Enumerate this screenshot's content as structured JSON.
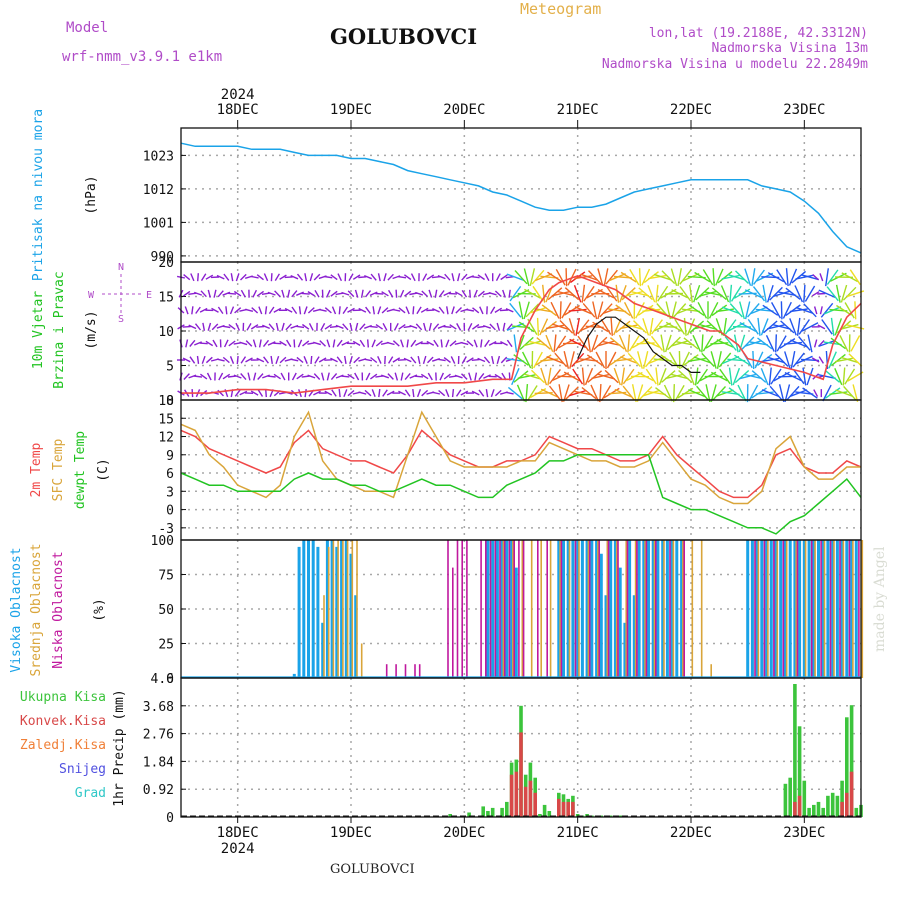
{
  "header": {
    "model_label": "Model",
    "model_name": "wrf-nmm_v3.9.1 e1km",
    "location": "GOLUBOVCI",
    "product": "Meteogram",
    "lonlat": "lon,lat (19.2188E, 42.3312N)",
    "elevation": "Nadmorska Visina 13m",
    "model_elevation": "Nadmorska Visina u modelu 22.2849m"
  },
  "footer": {
    "location": "GOLUBOVCI",
    "credit": "made by Angel"
  },
  "time_axis": {
    "year": "2024",
    "days": [
      "18DEC",
      "19DEC",
      "20DEC",
      "21DEC",
      "22DEC",
      "23DEC"
    ],
    "start_hour": 0,
    "end_hour": 144
  },
  "colors": {
    "pressure": "#1aa3e8",
    "t2m": "#f04848",
    "sfc": "#d9a53a",
    "dewpt": "#22c422",
    "cloud_high": "#1aa3e8",
    "cloud_mid": "#d9a53a",
    "cloud_low": "#c0189e",
    "precip_total": "#3cc43c",
    "precip_conv": "#d84848",
    "precip_freeze": "#f08038",
    "precip_snow": "#5050e0",
    "precip_hail": "#30c8c8",
    "wind_calm": "#8a1fd0",
    "grid": "#a8a8a8"
  },
  "chart_data": [
    {
      "type": "line",
      "panel": "pressure",
      "ylabel_lines": [
        "Pritisak na nivou mora",
        "(hPa)"
      ],
      "ylim": [
        988,
        1032
      ],
      "yticks": [
        990,
        1001,
        1012,
        1023
      ],
      "series": [
        {
          "x": [
            0,
            3,
            6,
            9,
            12,
            15,
            18,
            21,
            24,
            27,
            30,
            33,
            36,
            39,
            42,
            45,
            48,
            51,
            54,
            57,
            60,
            63,
            66,
            69,
            72,
            75,
            78,
            81,
            84,
            87,
            90,
            93,
            96,
            99,
            102,
            105,
            108,
            111,
            114,
            117,
            120,
            123,
            126,
            129,
            132,
            135,
            138,
            141,
            144
          ],
          "values": [
            1027,
            1026,
            1026,
            1026,
            1026,
            1025,
            1025,
            1025,
            1024,
            1023,
            1023,
            1023,
            1022,
            1022,
            1021,
            1020,
            1018,
            1017,
            1016,
            1015,
            1014,
            1013,
            1011,
            1010,
            1008,
            1006,
            1005,
            1005,
            1006,
            1006,
            1007,
            1009,
            1011,
            1012,
            1013,
            1014,
            1015,
            1015,
            1015,
            1015,
            1015,
            1013,
            1012,
            1011,
            1008,
            1004,
            998,
            993,
            991
          ]
        }
      ]
    },
    {
      "type": "scatter",
      "panel": "wind",
      "ylabel_lines": [
        "10m Vjetar",
        "Brzina i Pravac",
        "(m/s)"
      ],
      "compass": [
        "W",
        "E",
        "S",
        "N"
      ],
      "ylim": [
        0,
        20
      ],
      "yticks": [
        0,
        5,
        10,
        15,
        20
      ],
      "series": [
        {
          "name": "speed",
          "x": [
            0,
            6,
            12,
            18,
            24,
            30,
            36,
            42,
            48,
            54,
            60,
            66,
            70,
            72,
            75,
            78,
            80,
            84,
            88,
            92,
            96,
            100,
            104,
            108,
            112,
            114,
            118,
            120,
            126,
            132,
            136,
            138,
            141,
            144
          ],
          "values": [
            1,
            1,
            1.5,
            1.5,
            1,
            1.5,
            2,
            2,
            2,
            2.5,
            2.5,
            3,
            3,
            9,
            13,
            16,
            17,
            18,
            17,
            16,
            14,
            13,
            12,
            11,
            10,
            10,
            8,
            6,
            5,
            4,
            3,
            8,
            12,
            14
          ]
        },
        {
          "name": "gust",
          "x": [
            84,
            86,
            88,
            90,
            92,
            94,
            96,
            98,
            100,
            102,
            104,
            106,
            108,
            110
          ],
          "values": [
            6,
            9,
            11,
            12,
            12,
            11,
            10,
            9,
            7,
            6,
            5,
            5,
            4,
            4
          ]
        }
      ]
    },
    {
      "type": "line",
      "panel": "temperature",
      "ylabel_lines": [
        "2m Temp",
        "SFC Temp",
        "dewpt Temp",
        "(C)"
      ],
      "ylim": [
        -5,
        18
      ],
      "yticks": [
        -3,
        0,
        3,
        6,
        9,
        12,
        15,
        18
      ],
      "x": [
        0,
        3,
        6,
        9,
        12,
        15,
        18,
        21,
        24,
        27,
        30,
        33,
        36,
        39,
        42,
        45,
        48,
        51,
        54,
        57,
        60,
        63,
        66,
        69,
        72,
        75,
        78,
        81,
        84,
        87,
        90,
        93,
        96,
        99,
        102,
        105,
        108,
        111,
        114,
        117,
        120,
        123,
        126,
        129,
        132,
        135,
        138,
        141,
        144
      ],
      "series": [
        {
          "name": "2m Temp",
          "values": [
            13,
            12,
            10,
            9,
            8,
            7,
            6,
            7,
            11,
            13,
            10,
            9,
            8,
            8,
            7,
            6,
            9,
            13,
            11,
            9,
            8,
            7,
            7,
            8,
            8,
            9,
            12,
            11,
            10,
            10,
            9,
            8,
            8,
            9,
            12,
            9,
            7,
            5,
            3,
            2,
            2,
            4,
            9,
            10,
            7,
            6,
            6,
            8,
            7
          ]
        },
        {
          "name": "SFC Temp",
          "values": [
            14,
            13,
            9,
            7,
            4,
            3,
            2,
            4,
            12,
            16,
            8,
            5,
            4,
            3,
            3,
            2,
            9,
            16,
            12,
            8,
            7,
            7,
            7,
            7,
            8,
            8,
            11,
            10,
            9,
            8,
            8,
            7,
            7,
            8,
            11,
            8,
            5,
            4,
            2,
            1,
            1,
            3,
            10,
            12,
            7,
            5,
            5,
            7,
            7
          ]
        },
        {
          "name": "dewpt Temp",
          "values": [
            6,
            5,
            4,
            4,
            3,
            3,
            3,
            3,
            5,
            6,
            5,
            5,
            4,
            4,
            3,
            3,
            4,
            5,
            4,
            4,
            3,
            2,
            2,
            4,
            5,
            6,
            8,
            8,
            9,
            9,
            9,
            9,
            9,
            9,
            2,
            1,
            0,
            0,
            -1,
            -2,
            -3,
            -3,
            -4,
            -2,
            -1,
            1,
            3,
            5,
            2
          ]
        }
      ]
    },
    {
      "type": "bar",
      "panel": "clouds",
      "ylabel_lines": [
        "Visoka Oblacnost",
        "Srednja Oblacnost",
        "Niska Oblacnost",
        "(%)"
      ],
      "ylim": [
        0,
        100
      ],
      "yticks": [
        0,
        25,
        50,
        75,
        100
      ],
      "series": [
        {
          "name": "Visoka Oblacnost",
          "x": [
            24,
            25,
            26,
            27,
            28,
            29,
            30,
            31,
            32,
            33,
            34,
            35,
            36,
            37,
            65,
            66,
            67,
            68,
            69,
            70,
            71,
            80,
            81,
            82,
            83,
            84,
            85,
            86,
            87,
            88,
            89,
            90,
            91,
            92,
            93,
            94,
            95,
            96,
            97,
            98,
            99,
            100,
            101,
            102,
            103,
            104,
            105,
            106,
            120,
            121,
            122,
            123,
            124,
            125,
            126,
            127,
            128,
            129,
            130,
            131,
            132,
            133,
            134,
            135,
            136,
            137,
            138,
            139,
            140,
            141,
            142,
            143
          ],
          "values": [
            3,
            95,
            100,
            100,
            100,
            95,
            40,
            100,
            100,
            95,
            100,
            100,
            90,
            60,
            100,
            100,
            100,
            100,
            100,
            100,
            80,
            100,
            100,
            100,
            100,
            100,
            100,
            100,
            100,
            100,
            90,
            60,
            100,
            100,
            80,
            40,
            100,
            60,
            100,
            100,
            100,
            100,
            100,
            100,
            100,
            100,
            100,
            100,
            100,
            100,
            100,
            100,
            100,
            100,
            100,
            100,
            100,
            100,
            100,
            100,
            100,
            100,
            100,
            100,
            100,
            100,
            100,
            100,
            100,
            100,
            100,
            100
          ]
        },
        {
          "name": "Srednja Oblacnost",
          "x": [
            30,
            31,
            32,
            33,
            34,
            35,
            36,
            37,
            38,
            68,
            70,
            72,
            74,
            76,
            78,
            80,
            82,
            84,
            86,
            88,
            90,
            92,
            94,
            96,
            98,
            100,
            102,
            104,
            106,
            108,
            110,
            112,
            122,
            124,
            126,
            128,
            130,
            132,
            134,
            136,
            138,
            140,
            142,
            144
          ],
          "values": [
            60,
            95,
            100,
            100,
            100,
            100,
            100,
            100,
            25,
            100,
            100,
            100,
            100,
            100,
            100,
            100,
            100,
            100,
            100,
            100,
            100,
            100,
            100,
            100,
            100,
            100,
            100,
            100,
            100,
            100,
            100,
            10,
            100,
            100,
            100,
            100,
            100,
            100,
            100,
            100,
            100,
            100,
            100,
            100
          ]
        },
        {
          "name": "Niska Oblacnost",
          "x": [
            43,
            45,
            47,
            49,
            50,
            56,
            57,
            58,
            59,
            60,
            63,
            64,
            65,
            66,
            67,
            68,
            69,
            70,
            71,
            72,
            75,
            77,
            80,
            83,
            86,
            88,
            90,
            92,
            94,
            96,
            98,
            100,
            103,
            106,
            121,
            123,
            125,
            127,
            130,
            133,
            135,
            137,
            139,
            141,
            143
          ],
          "values": [
            10,
            10,
            10,
            10,
            10,
            100,
            80,
            100,
            100,
            100,
            100,
            100,
            100,
            100,
            100,
            100,
            100,
            100,
            100,
            100,
            100,
            100,
            100,
            100,
            100,
            100,
            100,
            100,
            100,
            100,
            100,
            100,
            100,
            100,
            100,
            100,
            100,
            100,
            100,
            100,
            100,
            100,
            100,
            100,
            100
          ]
        }
      ]
    },
    {
      "type": "bar",
      "panel": "precip",
      "ylabel_lines": [
        "1hr Precip (mm)"
      ],
      "legend": [
        "Ukupna Kisa",
        "Konvek.Kisa",
        "Zaledj.Kisa",
        "Snijeg",
        "Grad"
      ],
      "ylim": [
        0,
        4.6
      ],
      "yticks": [
        0,
        0.92,
        1.84,
        2.76,
        3.68,
        4.6
      ],
      "series": [
        {
          "name": "Ukupna Kisa",
          "x": [
            57,
            61,
            64,
            65,
            66,
            68,
            69,
            70,
            71,
            72,
            73,
            74,
            75,
            76,
            77,
            78,
            80,
            81,
            82,
            83,
            84,
            85,
            86,
            87,
            88,
            89,
            90,
            91,
            92,
            93,
            128,
            129,
            130,
            131,
            132,
            133,
            134,
            135,
            136,
            137,
            138,
            139,
            140,
            141,
            142,
            143,
            144
          ],
          "values": [
            0.1,
            0.15,
            0.35,
            0.2,
            0.3,
            0.3,
            0.5,
            1.8,
            1.9,
            3.68,
            1.4,
            1.8,
            1.3,
            0.1,
            0.4,
            0.2,
            0.8,
            0.75,
            0.6,
            0.7,
            0.1,
            0.05,
            0.1,
            0.05,
            0.05,
            0.05,
            0.05,
            0.05,
            0.05,
            0.05,
            1.1,
            1.3,
            4.4,
            3.0,
            1.2,
            0.3,
            0.4,
            0.5,
            0.3,
            0.7,
            0.8,
            0.7,
            1.2,
            3.3,
            3.7,
            0.3,
            0.4
          ]
        },
        {
          "name": "Konvek.Kisa",
          "x": [
            70,
            71,
            72,
            73,
            74,
            75,
            80,
            81,
            82,
            83,
            130,
            131,
            140,
            141,
            142
          ],
          "values": [
            1.4,
            1.5,
            2.8,
            1.0,
            1.2,
            0.8,
            0.6,
            0.5,
            0.5,
            0.5,
            0.5,
            0.7,
            0.5,
            0.8,
            1.5
          ]
        }
      ]
    }
  ]
}
